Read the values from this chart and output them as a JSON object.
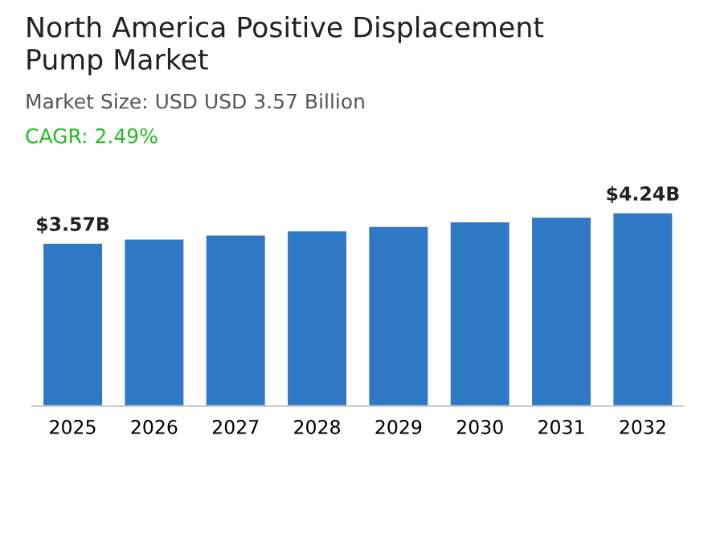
{
  "chart_data": {
    "type": "bar",
    "title": "North America Positive Displacement\nPump Market",
    "subtitle": "Market Size: USD USD 3.57 Billion",
    "annotations": [
      "CAGR: 2.49%"
    ],
    "categories": [
      "2025",
      "2026",
      "2027",
      "2028",
      "2029",
      "2030",
      "2031",
      "2032"
    ],
    "values": [
      3.57,
      3.66,
      3.75,
      3.84,
      3.94,
      4.04,
      4.14,
      4.24
    ],
    "value_labels": [
      "$3.57B",
      null,
      null,
      null,
      null,
      null,
      null,
      "$4.24B"
    ],
    "color": "#2e78c6",
    "grid": false,
    "legend": false
  }
}
